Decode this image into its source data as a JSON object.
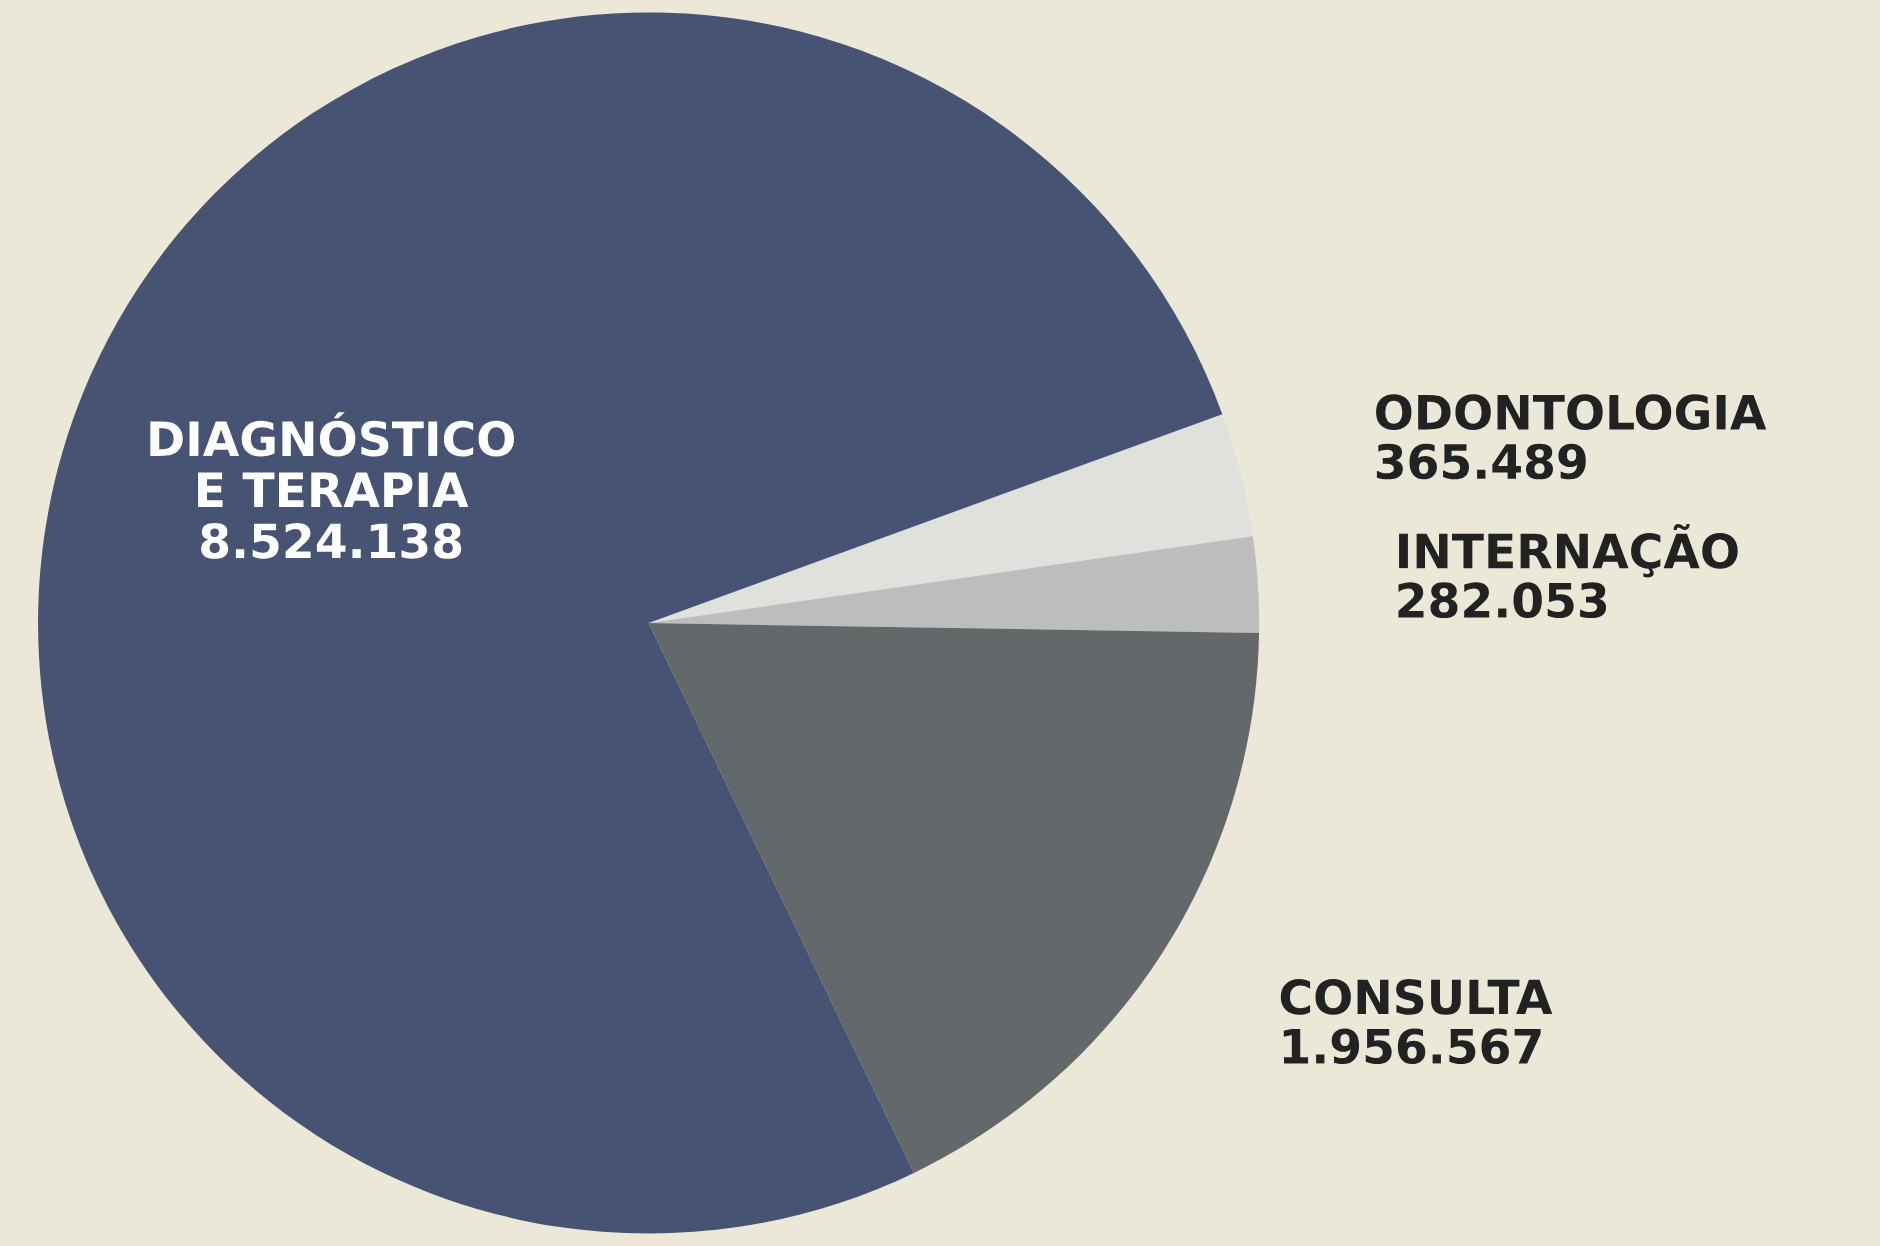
{
  "chart_data": {
    "type": "pie",
    "categories": [
      "ODONTOLOGIA",
      "INTERNAÇÃO",
      "CONSULTA",
      "DIAGNÓSTICO\nE TERAPIA"
    ],
    "values": [
      365489,
      282053,
      1956567,
      8524138
    ],
    "value_labels": [
      "365.489",
      "282.053",
      "1.956.567",
      "8.524.138"
    ],
    "colors": [
      "#e0e0dc",
      "#bdbdbd",
      "#63686a",
      "#465373"
    ]
  }
}
